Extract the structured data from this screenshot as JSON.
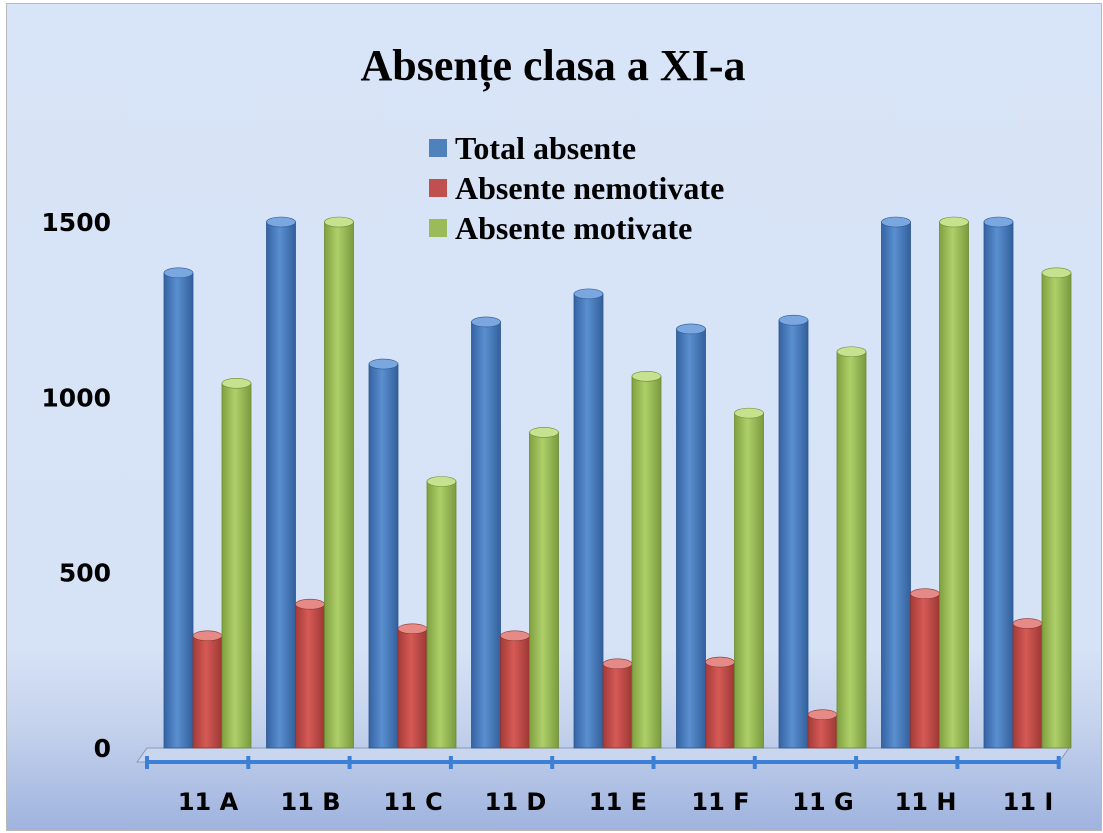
{
  "chart_data": {
    "type": "bar",
    "title": "Absențe clasa a XI-a",
    "xlabel": "",
    "ylabel": "",
    "categories": [
      "11 A",
      "11 B",
      "11 C",
      "11 D",
      "11 E",
      "11 F",
      "11 G",
      "11 H",
      "11 I"
    ],
    "series": [
      {
        "name": "Total absente",
        "color": "#4a7ebf",
        "values": [
          1355,
          1500,
          1095,
          1215,
          1295,
          1195,
          1220,
          1500,
          1500
        ]
      },
      {
        "name": "Absente nemotivate",
        "color": "#c0504d",
        "values": [
          320,
          410,
          340,
          320,
          240,
          245,
          95,
          440,
          355
        ]
      },
      {
        "name": "Absente motivate",
        "color": "#9bbb59",
        "values": [
          1040,
          1500,
          760,
          900,
          1060,
          955,
          1130,
          1500,
          1355
        ]
      }
    ],
    "ylim": [
      0,
      1500
    ],
    "yticks": [
      0,
      500,
      1000,
      1500
    ],
    "grid": false,
    "legend_position": "top-center"
  }
}
